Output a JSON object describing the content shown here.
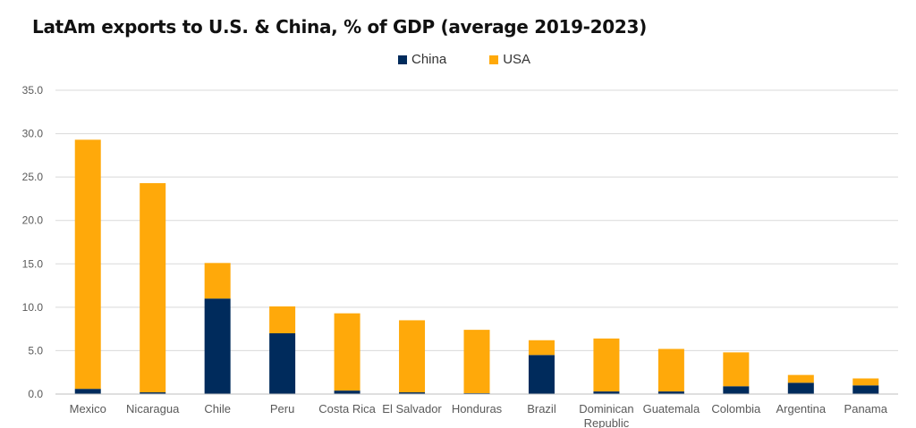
{
  "title": "LatAm exports to U.S. & China, % of GDP (average 2019-2023)",
  "colors": {
    "China": "#002B5C",
    "USA": "#FFA90A",
    "grid": "#d9d9d9"
  },
  "chart_data": {
    "type": "bar",
    "stacked": true,
    "title": "LatAm exports to U.S. & China, % of GDP (average 2019-2023)",
    "xlabel": "",
    "ylabel": "",
    "ylim": [
      0,
      35
    ],
    "yticks": [
      "0.0",
      "5.0",
      "10.0",
      "15.0",
      "20.0",
      "25.0",
      "30.0",
      "35.0"
    ],
    "grid": true,
    "legend": "top-center",
    "categories": [
      "Mexico",
      "Nicaragua",
      "Chile",
      "Peru",
      "Costa Rica",
      "El Salvador",
      "Honduras",
      "Brazil",
      "Dominican Republic",
      "Guatemala",
      "Colombia",
      "Argentina",
      "Panama"
    ],
    "series": [
      {
        "name": "China",
        "values": [
          0.6,
          0.2,
          11.0,
          7.0,
          0.4,
          0.2,
          0.1,
          4.5,
          0.3,
          0.3,
          0.9,
          1.3,
          1.0
        ]
      },
      {
        "name": "USA",
        "values": [
          28.7,
          24.1,
          4.1,
          3.1,
          8.9,
          8.3,
          7.3,
          1.7,
          6.1,
          4.9,
          3.9,
          0.9,
          0.8
        ]
      }
    ]
  }
}
